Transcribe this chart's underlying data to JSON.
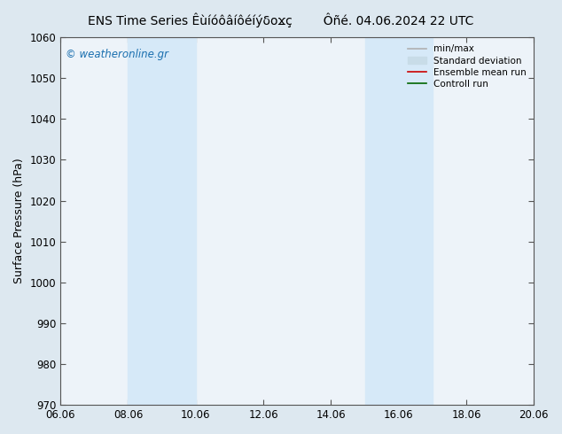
{
  "title": "ENS Time Series Êùíóôâíôéíýδοϫç",
  "title_right": "Ôñé. 04.06.2024 22 UTC",
  "ylabel": "Surface Pressure (hPa)",
  "ylim": [
    970,
    1060
  ],
  "yticks": [
    970,
    980,
    990,
    1000,
    1010,
    1020,
    1030,
    1040,
    1050,
    1060
  ],
  "xlabels": [
    "06.06",
    "08.06",
    "10.06",
    "12.06",
    "14.06",
    "16.06",
    "18.06",
    "20.06"
  ],
  "xvalues": [
    0,
    2,
    4,
    6,
    8,
    10,
    12,
    14
  ],
  "shade_bands": [
    {
      "xstart": 2,
      "xend": 4
    },
    {
      "xstart": 9,
      "xend": 11
    }
  ],
  "shade_color": "#d6e9f8",
  "plot_bg_color": "#edf3f9",
  "fig_bg_color": "#dde8f0",
  "watermark": "© weatheronline.gr",
  "watermark_color": "#1a6faf",
  "legend_items": [
    {
      "label": "min/max",
      "color": "#b0b0b0",
      "lw": 1.2,
      "style": "-"
    },
    {
      "label": "Standard deviation",
      "color": "#c8dce8",
      "lw": 5,
      "style": "-"
    },
    {
      "label": "Ensemble mean run",
      "color": "#cc0000",
      "lw": 1.2,
      "style": "-"
    },
    {
      "label": "Controll run",
      "color": "#006600",
      "lw": 1.2,
      "style": "-"
    }
  ],
  "title_fontsize": 10,
  "tick_fontsize": 8.5,
  "ylabel_fontsize": 9
}
